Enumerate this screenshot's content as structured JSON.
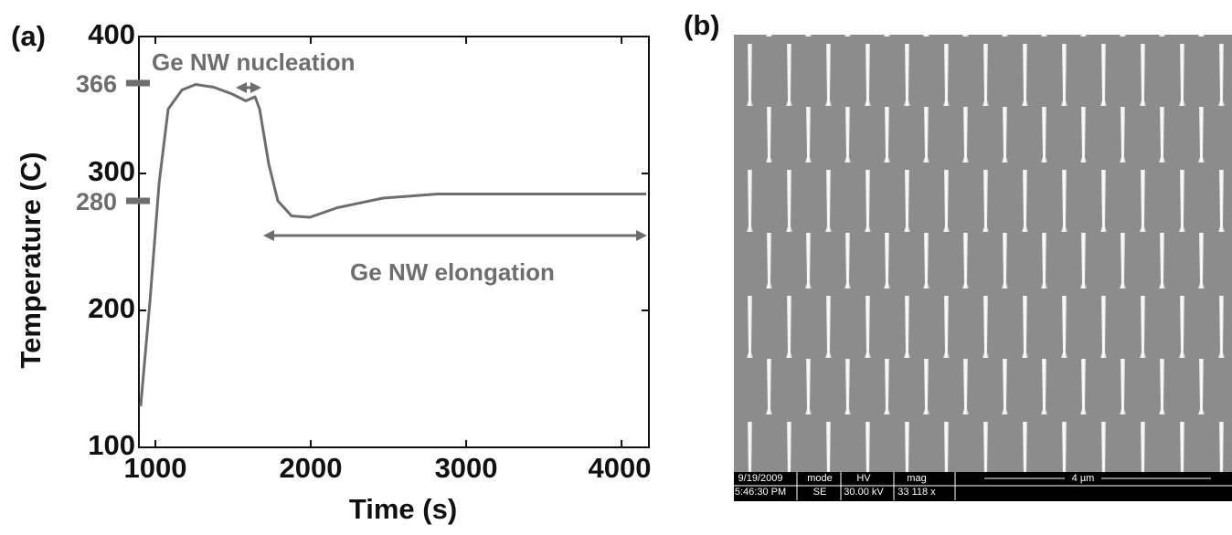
{
  "chart_data": {
    "type": "line",
    "panel_label": "(a)",
    "x_label": "Time (s)",
    "y_label": "Temperature (C)",
    "x": [
      905,
      965,
      1024,
      1082,
      1171,
      1259,
      1376,
      1494,
      1582,
      1641,
      1671,
      1729,
      1788,
      1876,
      1994,
      2171,
      2465,
      2818,
      3524,
      4159
    ],
    "series": [
      {
        "color": "#6d6d6d",
        "values": [
          130,
          207,
          293,
          347,
          361,
          365,
          363,
          358,
          353,
          356,
          347,
          307,
          280,
          269,
          268,
          275,
          282,
          285,
          285,
          285
        ]
      }
    ],
    "xlim": [
      894,
      4176
    ],
    "xticks": [
      1000,
      2000,
      3000,
      4000
    ],
    "ylim": [
      100,
      400
    ],
    "yticks": [
      100,
      200,
      300,
      400
    ],
    "reference_ticks": [
      366,
      280
    ],
    "annotations": [
      "Ge NW nucleation",
      "Ge NW elongation"
    ]
  },
  "image_panel": {
    "label": "(b)",
    "info_bar": [
      [
        "9/19/2009",
        "5:46:30 PM"
      ],
      [
        "mode",
        "SE"
      ],
      [
        "HV",
        "30.00 kV"
      ],
      [
        "mag",
        "33 118 x"
      ]
    ],
    "scale_bar": "4 µm"
  }
}
